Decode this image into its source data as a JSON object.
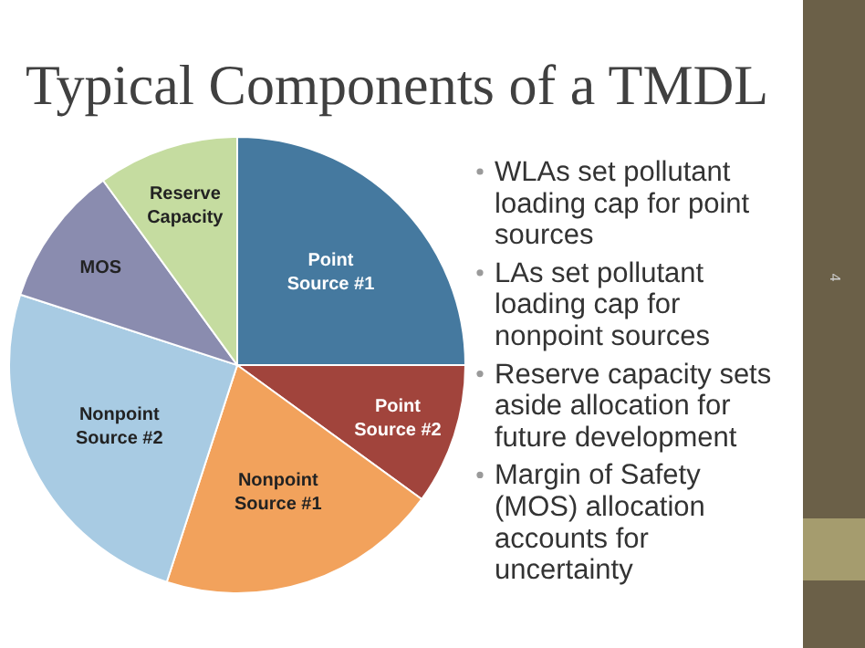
{
  "chart_data": {
    "type": "pie",
    "title": "Typical Components of a TMDL",
    "categories": [
      "Point Source #1",
      "Point Source #2",
      "Nonpoint Source #1",
      "Nonpoint Source #2",
      "MOS",
      "Reserve Capacity"
    ],
    "values": [
      25,
      10,
      20,
      25,
      10,
      10
    ],
    "colors": [
      "#45799f",
      "#a1443c",
      "#f2a25c",
      "#a8cbe3",
      "#8a8caf",
      "#c5dca0"
    ],
    "annotations": [
      "WLAs set pollutant loading cap for point sources",
      "LAs set pollutant loading cap for nonpoint sources",
      "Reserve capacity sets aside allocation for future development",
      "Margin of Safety (MOS) allocation accounts for uncertainty",
      "4"
    ]
  }
}
